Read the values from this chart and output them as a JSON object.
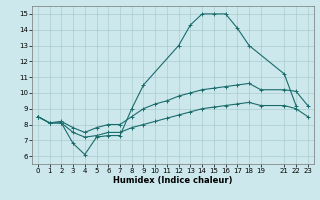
{
  "xlabel": "Humidex (Indice chaleur)",
  "bg_color": "#cce8ec",
  "grid_color": "#aacccc",
  "line_color": "#1a6b6b",
  "xlim": [
    -0.5,
    23.5
  ],
  "ylim": [
    5.5,
    15.5
  ],
  "xticks": [
    0,
    1,
    2,
    3,
    4,
    5,
    6,
    7,
    8,
    9,
    10,
    11,
    12,
    13,
    14,
    15,
    16,
    17,
    18,
    19,
    21,
    22,
    23
  ],
  "yticks": [
    6,
    7,
    8,
    9,
    10,
    11,
    12,
    13,
    14,
    15
  ],
  "line1_x": [
    0,
    1,
    2,
    3,
    4,
    5,
    6,
    7,
    8,
    9,
    12,
    13,
    14,
    15,
    16,
    17,
    18,
    21,
    22
  ],
  "line1_y": [
    8.5,
    8.1,
    8.1,
    6.8,
    6.1,
    7.2,
    7.3,
    7.3,
    9.0,
    10.5,
    13.0,
    14.3,
    15.0,
    15.0,
    15.0,
    14.1,
    13.0,
    11.2,
    9.2
  ],
  "line2_x": [
    0,
    1,
    2,
    3,
    4,
    5,
    6,
    7,
    8,
    9,
    10,
    11,
    12,
    13,
    14,
    15,
    16,
    17,
    18,
    19,
    21,
    22,
    23
  ],
  "line2_y": [
    8.5,
    8.1,
    8.2,
    7.8,
    7.5,
    7.8,
    8.0,
    8.0,
    8.5,
    9.0,
    9.3,
    9.5,
    9.8,
    10.0,
    10.2,
    10.3,
    10.4,
    10.5,
    10.6,
    10.2,
    10.2,
    10.1,
    9.2
  ],
  "line3_x": [
    0,
    1,
    2,
    3,
    4,
    5,
    6,
    7,
    8,
    9,
    10,
    11,
    12,
    13,
    14,
    15,
    16,
    17,
    18,
    19,
    21,
    22,
    23
  ],
  "line3_y": [
    8.5,
    8.1,
    8.1,
    7.5,
    7.2,
    7.3,
    7.5,
    7.5,
    7.8,
    8.0,
    8.2,
    8.4,
    8.6,
    8.8,
    9.0,
    9.1,
    9.2,
    9.3,
    9.4,
    9.2,
    9.2,
    9.0,
    8.5
  ],
  "marker_size": 2.5,
  "linewidth": 0.8,
  "tick_fontsize": 5.0,
  "xlabel_fontsize": 6.0
}
